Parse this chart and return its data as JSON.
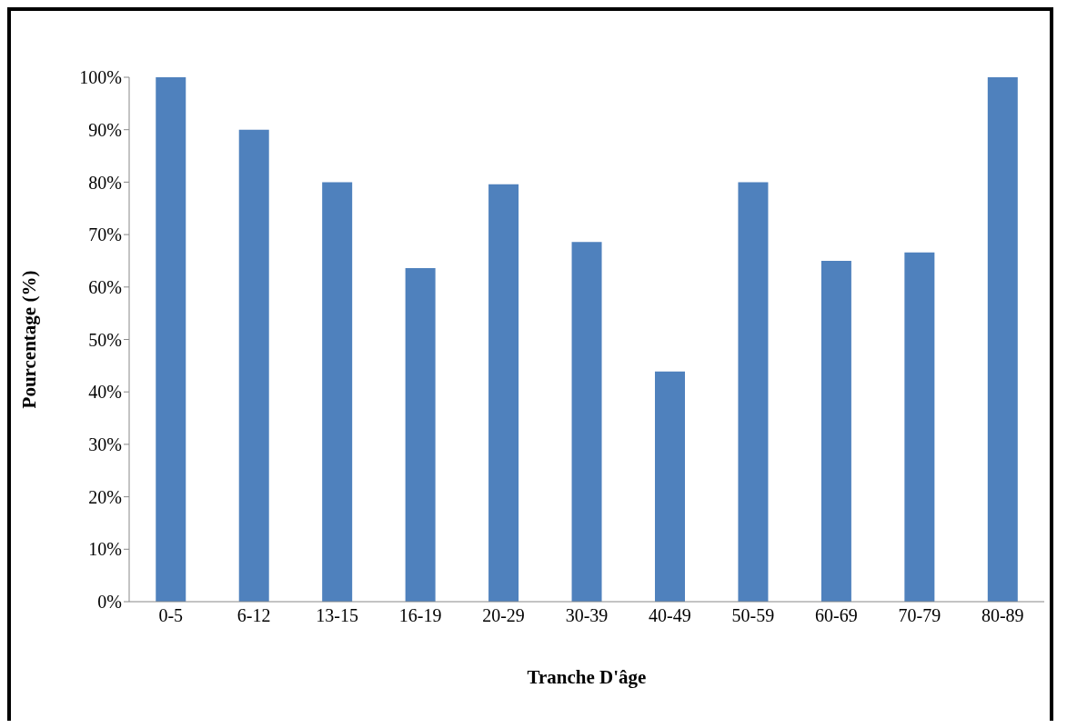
{
  "chart_data": {
    "type": "bar",
    "xlabel": "Tranche D'âge",
    "ylabel": "Pourcentage (%)",
    "categories": [
      "0-5",
      "6-12",
      "13-15",
      "16-19",
      "20-29",
      "30-39",
      "40-49",
      "50-59",
      "60-69",
      "70-79",
      "80-89"
    ],
    "values": [
      100,
      90,
      80,
      63.6,
      79.6,
      68.6,
      43.9,
      80,
      65,
      66.6,
      100
    ],
    "color": "#4f81bd",
    "ylim": [
      0,
      100
    ],
    "yticks": [
      {
        "value": 0,
        "label": "0%"
      },
      {
        "value": 10,
        "label": "10%"
      },
      {
        "value": 20,
        "label": "20%"
      },
      {
        "value": 30,
        "label": "30%"
      },
      {
        "value": 40,
        "label": "40%"
      },
      {
        "value": 50,
        "label": "50%"
      },
      {
        "value": 60,
        "label": "60%"
      },
      {
        "value": 70,
        "label": "70%"
      },
      {
        "value": 80,
        "label": "80%"
      },
      {
        "value": 90,
        "label": "90%"
      },
      {
        "value": 100,
        "label": "100%"
      }
    ],
    "grid": false,
    "legend": false
  }
}
